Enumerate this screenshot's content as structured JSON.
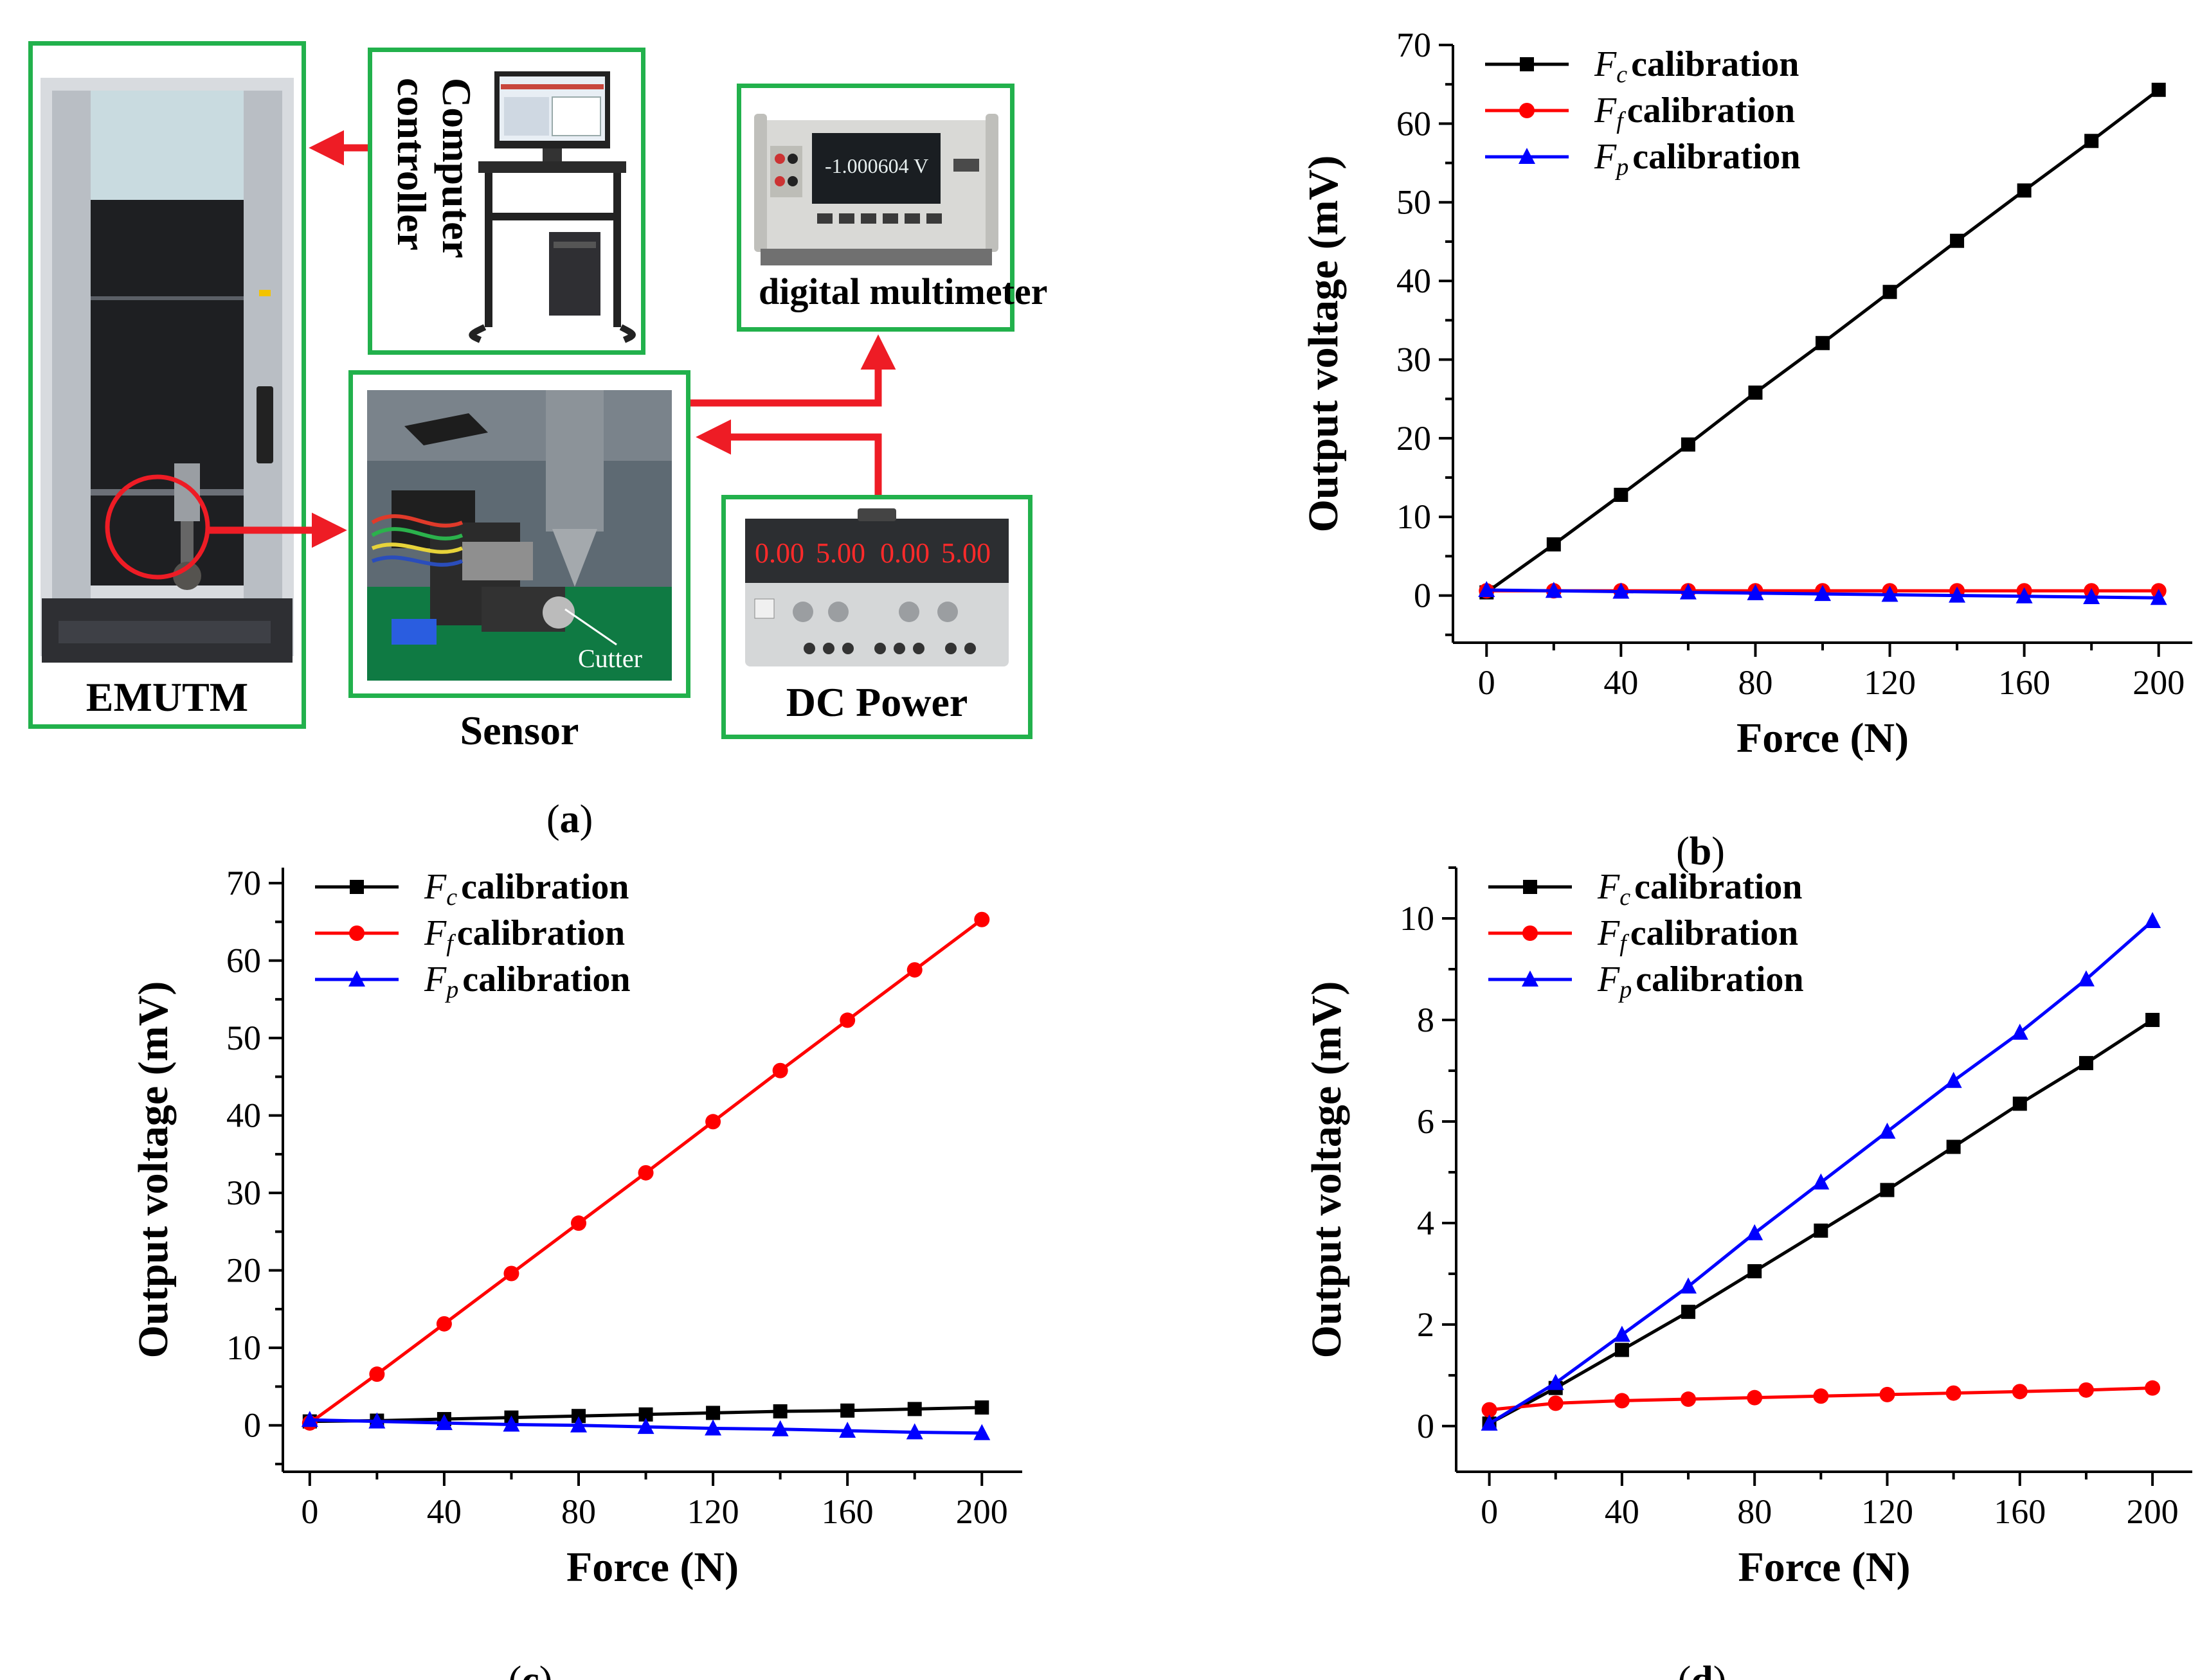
{
  "panel_a": {
    "sublabel": "a",
    "boxes": {
      "emutm": "EMUTM",
      "computer": [
        "Computer",
        "controller"
      ],
      "multimeter": "digital multimeter",
      "sensor": "Sensor",
      "cutter": "Cutter",
      "dc_power": "DC Power"
    },
    "multimeter_display": "-1.000604 V",
    "psu_display": [
      "0.00",
      "5.00",
      "0.00",
      "5.00"
    ],
    "colors": {
      "box_border": "#22b14c",
      "arrow": "#ee1c25"
    }
  },
  "chart_data": [
    {
      "id": "b",
      "sublabel": "b",
      "type": "line",
      "xlabel": "Force (N)",
      "ylabel": "Output voltage (mV)",
      "xlim": [
        -10,
        210
      ],
      "ylim": [
        -6,
        70
      ],
      "xticks": [
        0,
        40,
        80,
        120,
        160,
        200
      ],
      "yticks": [
        0,
        10,
        20,
        30,
        40,
        50,
        60,
        70
      ],
      "legend_position": "top-left",
      "x": [
        0,
        20,
        40,
        60,
        80,
        100,
        120,
        140,
        160,
        180,
        200
      ],
      "series": [
        {
          "name": "F",
          "sub": "c",
          "suffix": " calibration",
          "color": "#000000",
          "marker": "square",
          "values": [
            0.4,
            6.5,
            12.8,
            19.2,
            25.8,
            32.1,
            38.6,
            45.1,
            51.5,
            57.8,
            64.3
          ]
        },
        {
          "name": "F",
          "sub": "f",
          "suffix": " calibration",
          "color": "#ff0000",
          "marker": "circle",
          "values": [
            0.6,
            0.6,
            0.6,
            0.6,
            0.6,
            0.6,
            0.6,
            0.6,
            0.6,
            0.6,
            0.6
          ]
        },
        {
          "name": "F",
          "sub": "p",
          "suffix": " calibration",
          "color": "#0000ff",
          "marker": "triangle",
          "values": [
            0.7,
            0.6,
            0.5,
            0.4,
            0.3,
            0.2,
            0.1,
            0.0,
            -0.1,
            -0.2,
            -0.3
          ]
        }
      ]
    },
    {
      "id": "c",
      "sublabel": "c",
      "type": "line",
      "xlabel": "Force (N)",
      "ylabel": "Output voltage (mV)",
      "xlim": [
        -8,
        212
      ],
      "ylim": [
        -6,
        72
      ],
      "xticks": [
        0,
        40,
        80,
        120,
        160,
        200
      ],
      "yticks": [
        0,
        10,
        20,
        30,
        40,
        50,
        60,
        70
      ],
      "legend_position": "top-left",
      "x": [
        0,
        20,
        40,
        60,
        80,
        100,
        120,
        140,
        160,
        180,
        200
      ],
      "series": [
        {
          "name": "F",
          "sub": "c",
          "suffix": " calibration",
          "color": "#000000",
          "marker": "square",
          "values": [
            0.5,
            0.6,
            0.8,
            1.0,
            1.2,
            1.4,
            1.6,
            1.8,
            1.9,
            2.1,
            2.3
          ]
        },
        {
          "name": "F",
          "sub": "f",
          "suffix": " calibration",
          "color": "#ff0000",
          "marker": "circle",
          "values": [
            0.3,
            6.6,
            13.1,
            19.6,
            26.1,
            32.6,
            39.2,
            45.8,
            52.3,
            58.8,
            65.3
          ]
        },
        {
          "name": "F",
          "sub": "p",
          "suffix": " calibration",
          "color": "#0000ff",
          "marker": "triangle",
          "values": [
            0.7,
            0.5,
            0.3,
            0.1,
            -0.0,
            -0.2,
            -0.4,
            -0.5,
            -0.7,
            -0.9,
            -1.0
          ]
        }
      ]
    },
    {
      "id": "d",
      "sublabel": "d",
      "type": "line",
      "xlabel": "Force (N)",
      "ylabel": "Output voltage (mV)",
      "xlim": [
        -10,
        212
      ],
      "ylim": [
        -0.9,
        11
      ],
      "xticks": [
        0,
        40,
        80,
        120,
        160,
        200
      ],
      "yticks": [
        0,
        2,
        4,
        6,
        8,
        10
      ],
      "legend_position": "top-left",
      "x": [
        0,
        20,
        40,
        60,
        80,
        100,
        120,
        140,
        160,
        180,
        200
      ],
      "series": [
        {
          "name": "F",
          "sub": "c",
          "suffix": " calibration",
          "color": "#000000",
          "marker": "square",
          "values": [
            0.05,
            0.75,
            1.5,
            2.25,
            3.05,
            3.85,
            4.65,
            5.5,
            6.35,
            7.15,
            8.0
          ]
        },
        {
          "name": "F",
          "sub": "f",
          "suffix": " calibration",
          "color": "#ff0000",
          "marker": "circle",
          "values": [
            0.32,
            0.45,
            0.5,
            0.53,
            0.56,
            0.59,
            0.62,
            0.65,
            0.68,
            0.71,
            0.75
          ]
        },
        {
          "name": "F",
          "sub": "p",
          "suffix": " calibration",
          "color": "#0000ff",
          "marker": "triangle",
          "values": [
            0.05,
            0.85,
            1.8,
            2.75,
            3.8,
            4.8,
            5.8,
            6.8,
            7.75,
            8.8,
            9.95
          ]
        }
      ]
    }
  ]
}
